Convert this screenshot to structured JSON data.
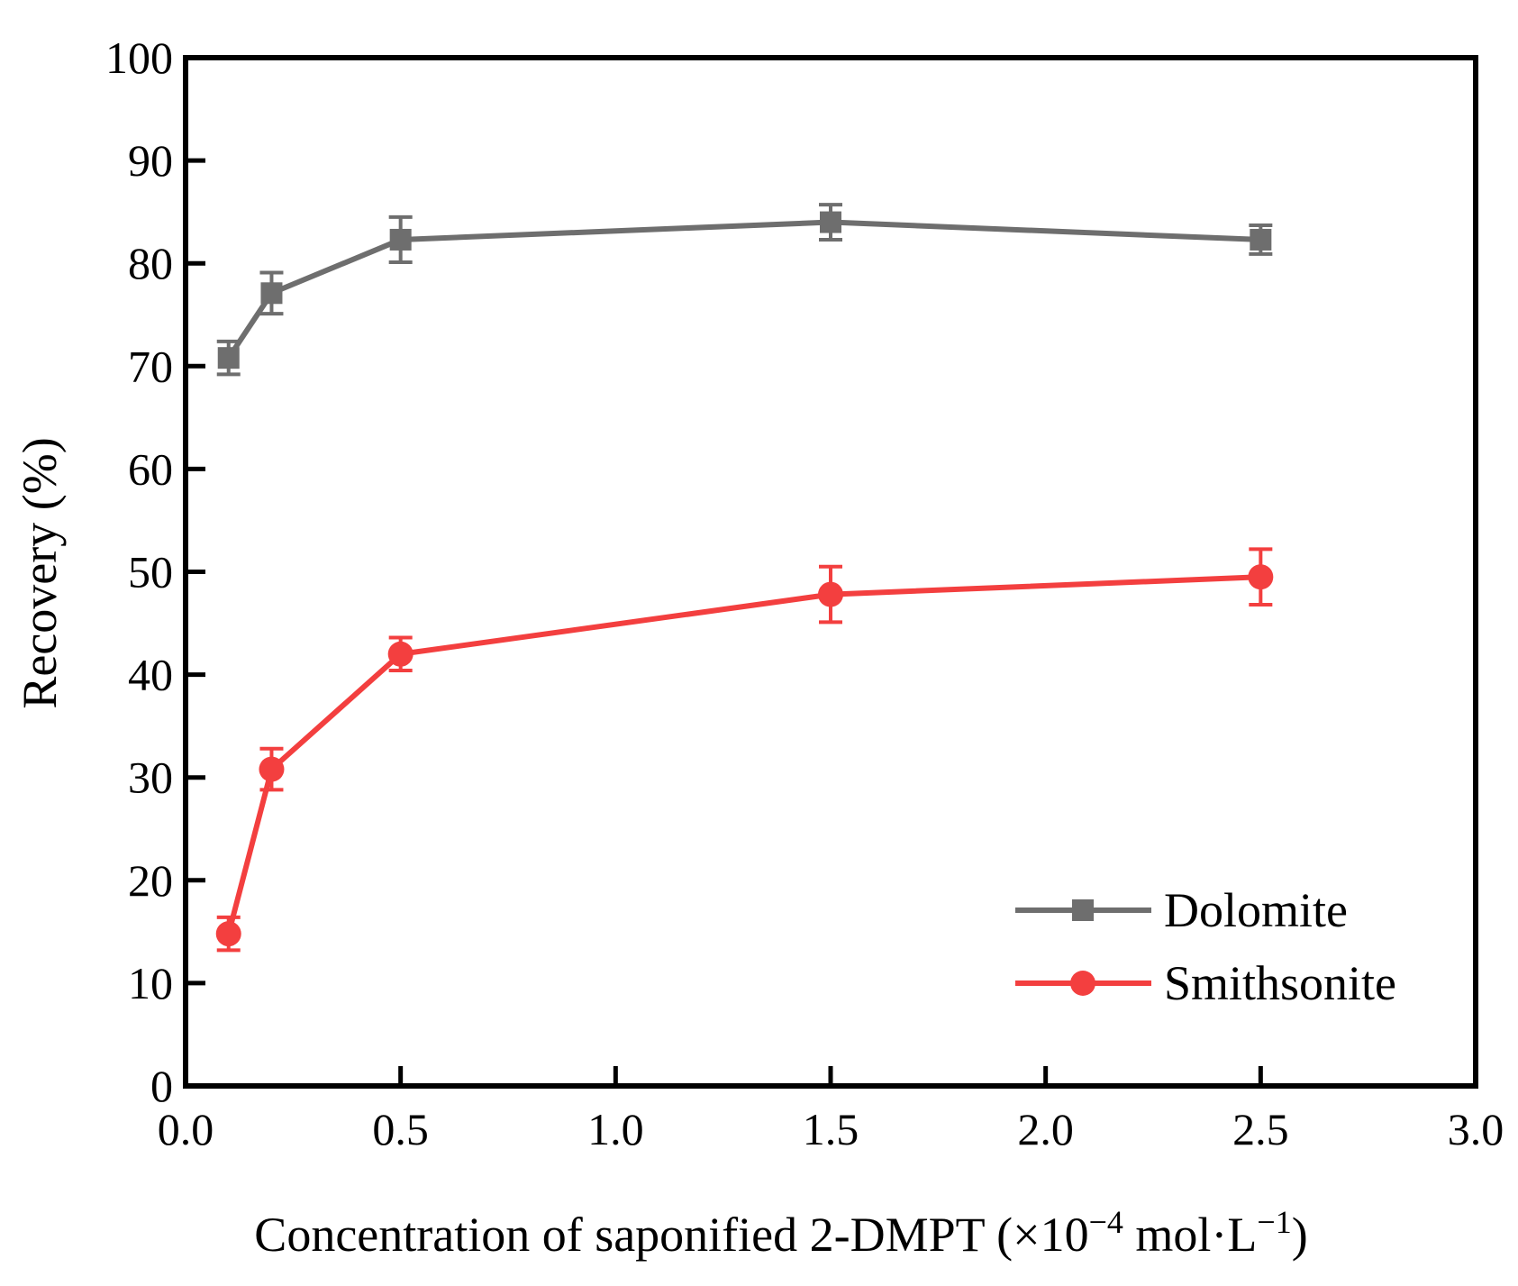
{
  "chart_data": {
    "type": "line",
    "title": "",
    "xlabel_parts": {
      "main": "Concentration of saponified 2-DMPT (×10",
      "exp1": "−4",
      "mid": " mol·L",
      "exp2": "−1",
      "end": ")"
    },
    "ylabel": "Recovery (%)",
    "xlim": [
      0.0,
      3.0
    ],
    "ylim": [
      0,
      100
    ],
    "x_ticks": [
      0.0,
      0.5,
      1.0,
      1.5,
      2.0,
      2.5,
      3.0
    ],
    "x_tick_labels": [
      "0.0",
      "0.5",
      "1.0",
      "1.5",
      "2.0",
      "2.5",
      "3.0"
    ],
    "y_ticks": [
      0,
      10,
      20,
      30,
      40,
      50,
      60,
      70,
      80,
      90,
      100
    ],
    "y_tick_labels": [
      "0",
      "10",
      "20",
      "30",
      "40",
      "50",
      "60",
      "70",
      "80",
      "90",
      "100"
    ],
    "legend_position": "bottom-right",
    "series": [
      {
        "name": "Dolomite",
        "color": "#6e6e6e",
        "marker": "square",
        "x": [
          0.1,
          0.2,
          0.5,
          1.5,
          2.5
        ],
        "y": [
          70.8,
          77.1,
          82.3,
          84.0,
          82.3
        ],
        "err": [
          1.6,
          2.0,
          2.2,
          1.7,
          1.4
        ]
      },
      {
        "name": "Smithsonite",
        "color": "#f33f3f",
        "marker": "circle",
        "x": [
          0.1,
          0.2,
          0.5,
          1.5,
          2.5
        ],
        "y": [
          14.8,
          30.8,
          42.0,
          47.8,
          49.5
        ],
        "err": [
          1.6,
          2.0,
          1.6,
          2.7,
          2.7
        ]
      }
    ]
  }
}
